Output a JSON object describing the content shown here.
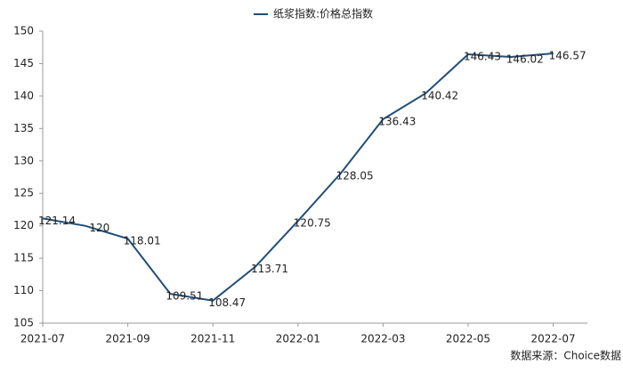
{
  "chart_data": {
    "type": "line",
    "categories": [
      "2021-07",
      null,
      "2021-09",
      null,
      "2021-11",
      null,
      "2022-01",
      null,
      "2022-03",
      null,
      "2022-05",
      null,
      "2022-07"
    ],
    "series": [
      {
        "name": "纸浆指数:价格总指数",
        "color": "#1f4e79",
        "values": [
          121.14,
          120,
          118.01,
          109.51,
          108.47,
          113.71,
          120.75,
          128.05,
          136.43,
          140.42,
          146.43,
          146.02,
          146.57
        ]
      }
    ],
    "ylim": [
      105,
      150
    ],
    "yticks": [
      105,
      110,
      115,
      120,
      125,
      130,
      135,
      140,
      145,
      150
    ],
    "legend": "top",
    "data_labels": true,
    "source": "数据来源：Choice数据"
  }
}
